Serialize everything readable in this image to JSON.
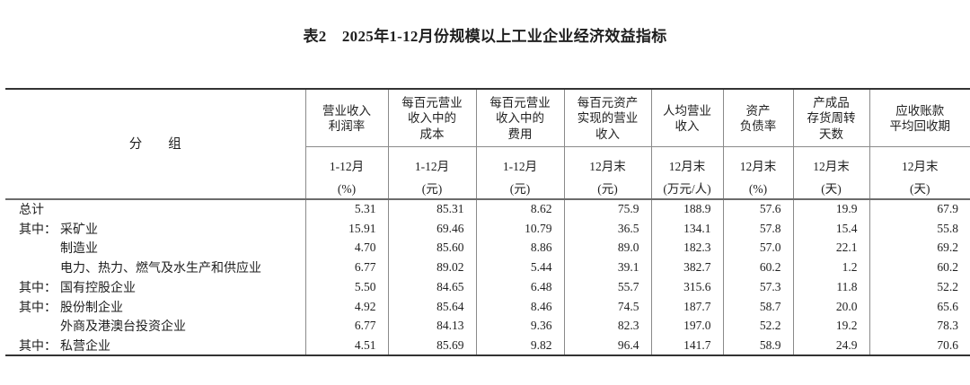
{
  "title": "表2　2025年1-12月份规模以上工业企业经济效益指标",
  "table": {
    "group_header": "分　　组",
    "columns": [
      {
        "name": "营业收入\n利润率",
        "period": "1-12月",
        "unit": "(%)"
      },
      {
        "name": "每百元营业\n收入中的\n成本",
        "period": "1-12月",
        "unit": "(元)"
      },
      {
        "name": "每百元营业\n收入中的\n费用",
        "period": "1-12月",
        "unit": "(元)"
      },
      {
        "name": "每百元资产\n实现的营业\n收入",
        "period": "12月末",
        "unit": "(元)"
      },
      {
        "name": "人均营业\n收入",
        "period": "12月末",
        "unit": "(万元/人)"
      },
      {
        "name": "资产\n负债率",
        "period": "12月末",
        "unit": "(%)"
      },
      {
        "name": "产成品\n存货周转\n天数",
        "period": "12月末",
        "unit": "(天)"
      },
      {
        "name": "应收账款\n平均回收期",
        "period": "12月末",
        "unit": "(天)"
      }
    ],
    "rows": [
      {
        "prefix": "",
        "name": "总计",
        "total": true,
        "values": [
          "5.31",
          "85.31",
          "8.62",
          "75.9",
          "188.9",
          "57.6",
          "19.9",
          "67.9"
        ]
      },
      {
        "prefix": "其中：",
        "name": "采矿业",
        "total": false,
        "values": [
          "15.91",
          "69.46",
          "10.79",
          "36.5",
          "134.1",
          "57.8",
          "15.4",
          "55.8"
        ]
      },
      {
        "prefix": "",
        "name": "制造业",
        "total": false,
        "values": [
          "4.70",
          "85.60",
          "8.86",
          "89.0",
          "182.3",
          "57.0",
          "22.1",
          "69.2"
        ]
      },
      {
        "prefix": "",
        "name": "电力、热力、燃气及水生产和供应业",
        "total": false,
        "values": [
          "6.77",
          "89.02",
          "5.44",
          "39.1",
          "382.7",
          "60.2",
          "1.2",
          "60.2"
        ]
      },
      {
        "prefix": "其中：",
        "name": "国有控股企业",
        "total": false,
        "values": [
          "5.50",
          "84.65",
          "6.48",
          "55.7",
          "315.6",
          "57.3",
          "11.8",
          "52.2"
        ]
      },
      {
        "prefix": "其中：",
        "name": "股份制企业",
        "total": false,
        "values": [
          "4.92",
          "85.64",
          "8.46",
          "74.5",
          "187.7",
          "58.7",
          "20.0",
          "65.6"
        ]
      },
      {
        "prefix": "",
        "name": "外商及港澳台投资企业",
        "total": false,
        "values": [
          "6.77",
          "84.13",
          "9.36",
          "82.3",
          "197.0",
          "52.2",
          "19.2",
          "78.3"
        ]
      },
      {
        "prefix": "其中：",
        "name": "私营企业",
        "total": false,
        "values": [
          "4.51",
          "85.69",
          "9.82",
          "96.4",
          "141.7",
          "58.9",
          "24.9",
          "70.6"
        ]
      }
    ],
    "colors": {
      "outer_border": "#333333",
      "inner_border": "#8a8a8a",
      "header_bottom_border": "#6b6b6b",
      "text": "#1f1f1f",
      "background": "#ffffff"
    }
  }
}
